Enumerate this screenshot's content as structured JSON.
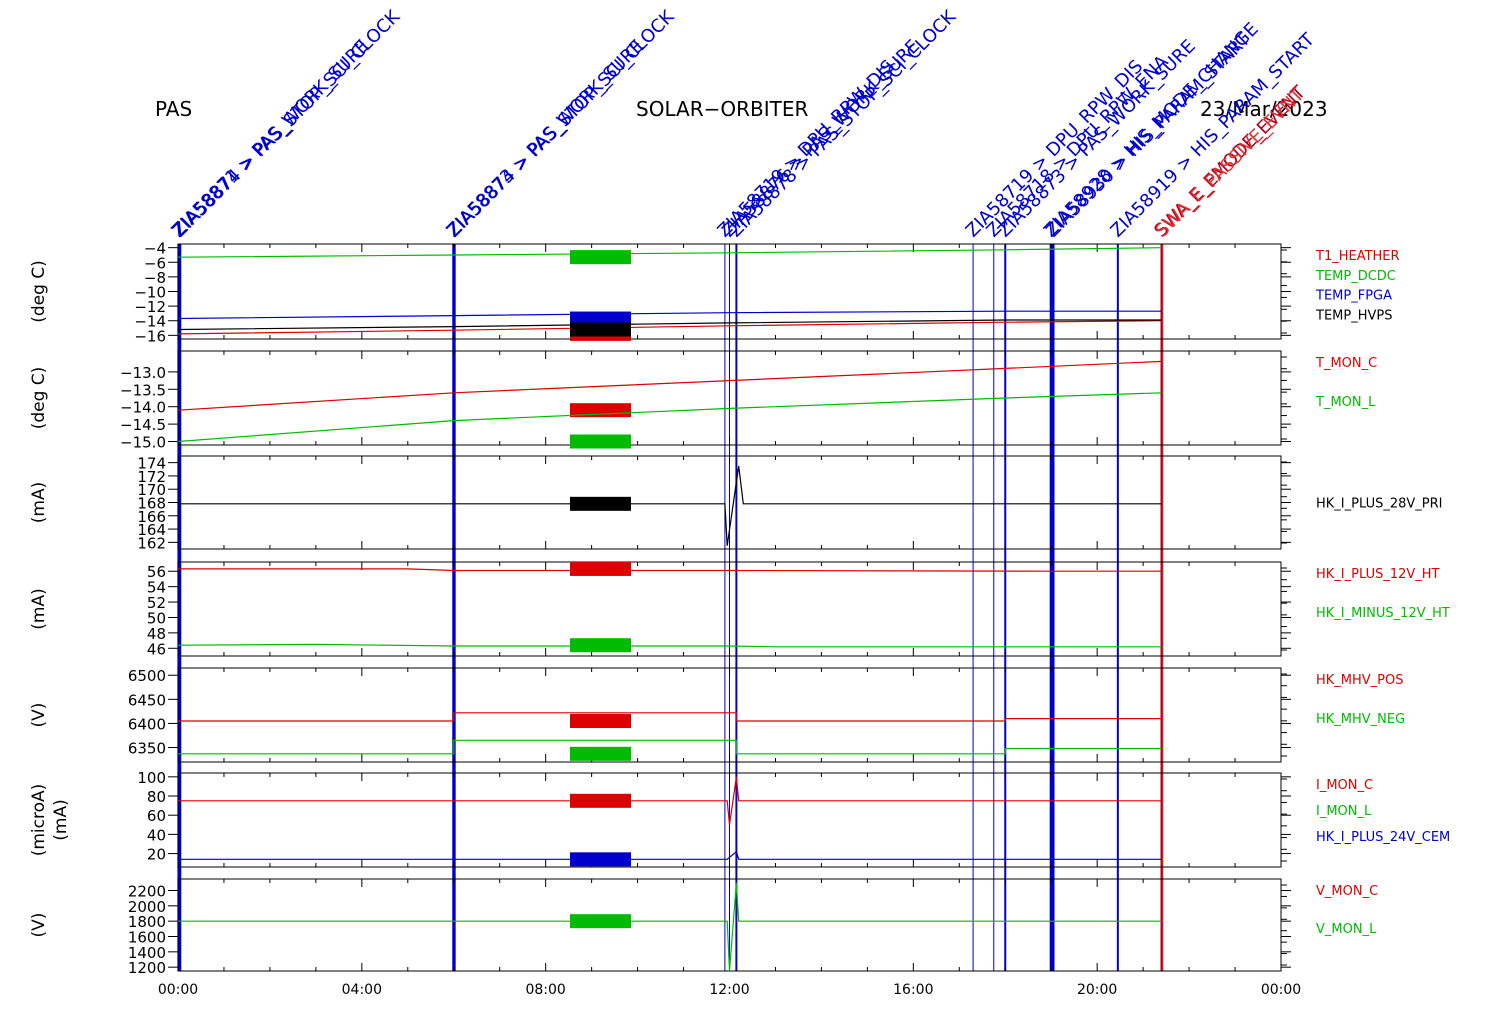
{
  "header": {
    "instrument": "PAS",
    "mission": "SOLAR−ORBITER",
    "date": "23/Mar/2023"
  },
  "colors": {
    "red": "#dd0000",
    "green": "#00bb00",
    "blue": "#0000cc",
    "black": "#000000",
    "darkred": "#aa0022"
  },
  "chart_data": {
    "type": "line",
    "x_axis": {
      "unit": "hours",
      "range": [
        0,
        24
      ],
      "tick_values": [
        0,
        4,
        8,
        12,
        16,
        20,
        24
      ],
      "tick_labels": [
        "00:00",
        "04:00",
        "08:00",
        "12:00",
        "16:00",
        "20:00",
        "00:00"
      ]
    },
    "data_end_hour": 21.4,
    "events": [
      {
        "hour": 0.02,
        "label": "ZIA58871 > PAS_WORK_SURE",
        "color": "#0000cc",
        "width": 3
      },
      {
        "hour": 0.05,
        "label": "ZIA58874 > PAS_STOP_SCI_CLOCK",
        "color": "#0000cc",
        "width": 2
      },
      {
        "hour": 6.0,
        "label": "ZIA58873 > PAS_WORK_SURE",
        "color": "#0000cc",
        "width": 3
      },
      {
        "hour": 6.02,
        "label": "ZIA58874 > PAS_STOP_SCI_CLOCK",
        "color": "#0000cc",
        "width": 2
      },
      {
        "hour": 11.9,
        "label": "ZIA58719 > DPU_RPW_DIS",
        "color": "#0000cc",
        "width": 1
      },
      {
        "hour": 12.0,
        "label": "ZIA58876 > PAS_WORK_SURE",
        "color": "#0000cc",
        "width": 1
      },
      {
        "hour": 12.15,
        "label": "ZIA58878 > PAS_STOP_SCI_CLOCK",
        "color": "#0000cc",
        "width": 2
      },
      {
        "hour": 17.3,
        "label": "ZIA58719 > DPU_RPW_DIS",
        "color": "#0000cc",
        "width": 1
      },
      {
        "hour": 17.75,
        "label": "ZIA58718 > DPU_RPW_ENA",
        "color": "#0000cc",
        "width": 1
      },
      {
        "hour": 18.0,
        "label": "ZIA58873 > PAS_WORK_SURE",
        "color": "#0000cc",
        "width": 2
      },
      {
        "hour": 19.0,
        "label": "ZIA58928 > HIS_MODE_CHANGE",
        "color": "#0000cc",
        "width": 3
      },
      {
        "hour": 19.05,
        "label": "ZIA58930 > HIS_PARAM_START",
        "color": "#0000cc",
        "width": 2
      },
      {
        "hour": 20.45,
        "label": "ZIA58919 > HIS_PARAM_START",
        "color": "#0000cc",
        "width": 2
      },
      {
        "hour": 21.4,
        "label": "SWA_E_EMODE_EVENT",
        "color": "#aa0022",
        "width": 2
      },
      {
        "hour": 21.43,
        "label": "SWA_E_PASSIVE_EVNT",
        "color": "#dd3333",
        "width": 1
      }
    ],
    "panels": [
      {
        "ylabel": "(deg C)",
        "ylim": [
          -16.5,
          -3.5
        ],
        "ticks": [
          -16,
          -14,
          -12,
          -10,
          -8,
          -6,
          -4
        ],
        "series": [
          {
            "name": "T1_HEATHER",
            "color": "#dd0000",
            "x": [
              0,
              6,
              12,
              18,
              21.4
            ],
            "y": [
              -15.8,
              -15.3,
              -14.7,
              -14.2,
              -14.0
            ]
          },
          {
            "name": "TEMP_DCDC",
            "color": "#00bb00",
            "x": [
              0,
              6,
              12,
              18,
              21.4
            ],
            "y": [
              -5.3,
              -5.0,
              -4.7,
              -4.3,
              -4.0
            ]
          },
          {
            "name": "TEMP_FPGA",
            "color": "#0000cc",
            "x": [
              0,
              6,
              12,
              18,
              21.4
            ],
            "y": [
              -13.7,
              -13.3,
              -12.9,
              -12.7,
              -12.7
            ]
          },
          {
            "name": "TEMP_HVPS",
            "color": "#000000",
            "x": [
              0,
              6,
              12,
              18,
              21.4
            ],
            "y": [
              -15.2,
              -14.8,
              -14.3,
              -13.9,
              -13.9
            ]
          }
        ]
      },
      {
        "ylabel": "(deg C)",
        "ylim": [
          -15.1,
          -12.4
        ],
        "ticks": [
          -15.0,
          -14.5,
          -14.0,
          -13.5,
          -13.0
        ],
        "tick_labels": [
          "−15.0",
          "−14.5",
          "−14.0",
          "−13.5",
          "−13.0"
        ],
        "series": [
          {
            "name": "T_MON_C",
            "color": "#dd0000",
            "x": [
              0,
              6,
              12,
              18,
              21.4
            ],
            "y": [
              -14.1,
              -13.6,
              -13.25,
              -12.9,
              -12.7
            ]
          },
          {
            "name": "T_MON_L",
            "color": "#00bb00",
            "x": [
              0,
              6,
              12,
              18,
              21.4
            ],
            "y": [
              -15.0,
              -14.4,
              -14.05,
              -13.75,
              -13.6
            ]
          }
        ]
      },
      {
        "ylabel": "(mA)",
        "ylim": [
          161,
          175
        ],
        "ticks": [
          162,
          164,
          166,
          168,
          170,
          172,
          174
        ],
        "series": [
          {
            "name": "HK_I_PLUS_28V_PRI",
            "color": "#000000",
            "x": [
              0,
              11.9,
              11.95,
              12.2,
              12.3,
              21.4
            ],
            "y": [
              167.8,
              167.8,
              161.5,
              173.5,
              167.8,
              167.8
            ]
          }
        ]
      },
      {
        "ylabel": "(mA)",
        "ylim": [
          45,
          57.2
        ],
        "ticks": [
          46,
          48,
          50,
          52,
          54,
          56
        ],
        "series": [
          {
            "name": "HK_I_PLUS_12V_HT",
            "color": "#dd0000",
            "x": [
              0,
              5,
              6,
              12,
              19,
              21.4
            ],
            "y": [
              56.3,
              56.3,
              56.1,
              56.1,
              56.0,
              56.0
            ]
          },
          {
            "name": "HK_I_MINUS_12V_HT",
            "color": "#00bb00",
            "x": [
              0,
              3,
              6,
              12,
              13,
              21.4
            ],
            "y": [
              46.4,
              46.5,
              46.3,
              46.3,
              46.2,
              46.2
            ]
          }
        ]
      },
      {
        "ylabel": "(V)",
        "ylim": [
          6320,
          6515
        ],
        "ticks": [
          6350,
          6400,
          6450,
          6500
        ],
        "series": [
          {
            "name": "HK_MHV_POS",
            "color": "#dd0000",
            "x": [
              0,
              6,
              6,
              12.15,
              12.15,
              18,
              18,
              21.4
            ],
            "y": [
              6405,
              6405,
              6422,
              6422,
              6405,
              6405,
              6410,
              6410
            ]
          },
          {
            "name": "HK_MHV_NEG",
            "color": "#00bb00",
            "x": [
              0,
              6,
              6,
              12.15,
              12.15,
              18,
              18,
              21.4
            ],
            "y": [
              6337,
              6337,
              6365,
              6365,
              6337,
              6337,
              6348,
              6348
            ]
          }
        ]
      },
      {
        "ylabel": "(microA)",
        "ylabel2": "(mA)",
        "ylim": [
          6,
          104
        ],
        "ticks": [
          20,
          40,
          60,
          80,
          100
        ],
        "series": [
          {
            "name": "I_MON_C",
            "color": "#dd0000",
            "x": [
              0,
              11.95,
              12.0,
              12.15,
              12.2,
              21.4
            ],
            "y": [
              75,
              75,
              50,
              100,
              75,
              75
            ]
          },
          {
            "name": "I_MON_L",
            "color": "#00bb00",
            "x": [],
            "y": []
          },
          {
            "name": "HK_I_PLUS_24V_CEM",
            "color": "#0000cc",
            "x": [
              0,
              11.95,
              12.15,
              12.2,
              21.4
            ],
            "y": [
              14,
              14,
              22,
              14,
              14
            ]
          }
        ]
      },
      {
        "ylabel": "(V)",
        "ylim": [
          1150,
          2350
        ],
        "ticks": [
          1200,
          1400,
          1600,
          1800,
          2000,
          2200
        ],
        "series": [
          {
            "name": "V_MON_C",
            "color": "#dd0000",
            "x": [],
            "y": []
          },
          {
            "name": "V_MON_L",
            "color": "#00bb00",
            "x": [
              0,
              11.95,
              12.0,
              12.15,
              12.2,
              21.4
            ],
            "y": [
              1800,
              1800,
              1150,
              2300,
              1800,
              1800
            ]
          }
        ]
      }
    ]
  }
}
